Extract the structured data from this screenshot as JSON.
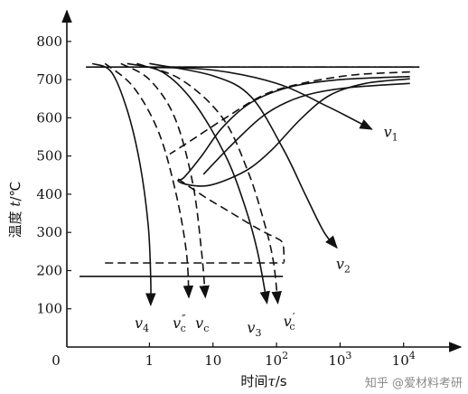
{
  "chart_data": {
    "type": "line",
    "title": "",
    "xlabel_parts": [
      "时间",
      "τ",
      "/s"
    ],
    "ylabel_parts": [
      "温度",
      "t",
      "/℃"
    ],
    "y_ticks": [
      {
        "value": 100,
        "label": "100"
      },
      {
        "value": 200,
        "label": "200"
      },
      {
        "value": 300,
        "label": "300"
      },
      {
        "value": 400,
        "label": "400"
      },
      {
        "value": 500,
        "label": "500"
      },
      {
        "value": 600,
        "label": "600"
      },
      {
        "value": 700,
        "label": "700"
      },
      {
        "value": 800,
        "label": "800"
      }
    ],
    "x_ticks": [
      {
        "exp": 0,
        "base": "1",
        "sup": ""
      },
      {
        "exp": 1,
        "base": "10",
        "sup": ""
      },
      {
        "exp": 2,
        "base": "10",
        "sup": "2"
      },
      {
        "exp": 3,
        "base": "10",
        "sup": "3"
      },
      {
        "exp": 4,
        "base": "10",
        "sup": "4"
      }
    ],
    "origin_label": "0",
    "xlim_log10": [
      -1.3,
      4.9
    ],
    "ylim": [
      0,
      880
    ],
    "reference_lines": [
      {
        "id": "ms-dashed",
        "style": "dashed",
        "y": 220,
        "x_from_log": -0.7,
        "x_to_log": 2.12
      },
      {
        "id": "ms-solid",
        "style": "solid",
        "y": 185,
        "x_from_log": -1.1,
        "x_to_log": 2.1
      },
      {
        "id": "a1-solid",
        "style": "solid",
        "y": 733,
        "x_from_log": -1.0,
        "x_to_log": 4.25
      },
      {
        "id": "a1-dashdot",
        "style": "dashdot",
        "y": 733,
        "x_from_log": 0.2,
        "x_to_log": 4.25
      }
    ],
    "c_curves": [
      {
        "id": "start-solid",
        "style": "solid",
        "points": [
          [
            4.1,
            708
          ],
          [
            3.0,
            700
          ],
          [
            2.2,
            680
          ],
          [
            1.6,
            640
          ],
          [
            1.15,
            575
          ],
          [
            0.82,
            500
          ],
          [
            0.55,
            445
          ],
          [
            0.45,
            435
          ],
          [
            0.6,
            425
          ],
          [
            0.9,
            422
          ],
          [
            1.25,
            440
          ],
          [
            1.6,
            470
          ],
          [
            1.95,
            520
          ],
          [
            2.4,
            600
          ],
          [
            2.85,
            660
          ],
          [
            3.4,
            690
          ],
          [
            4.1,
            702
          ]
        ]
      },
      {
        "id": "end-solid",
        "style": "solid",
        "points": [
          [
            4.1,
            690
          ],
          [
            3.2,
            680
          ],
          [
            2.6,
            665
          ],
          [
            2.15,
            640
          ],
          [
            1.75,
            600
          ],
          [
            1.3,
            530
          ],
          [
            0.98,
            475
          ],
          [
            0.85,
            452
          ]
        ]
      },
      {
        "id": "start-dashed",
        "style": "dashed",
        "points": [
          [
            4.1,
            720
          ],
          [
            3.2,
            712
          ],
          [
            2.4,
            690
          ],
          [
            1.8,
            660
          ],
          [
            1.2,
            600
          ],
          [
            0.65,
            540
          ],
          [
            0.32,
            505
          ]
        ]
      },
      {
        "id": "end-dashed",
        "style": "dashed",
        "points": [
          [
            0.45,
            440
          ],
          [
            0.85,
            395
          ],
          [
            1.25,
            355
          ],
          [
            1.6,
            320
          ],
          [
            1.85,
            297
          ],
          [
            2.0,
            285
          ],
          [
            2.1,
            270
          ],
          [
            2.12,
            222
          ]
        ]
      }
    ],
    "series": [
      {
        "name": "",
        "label_base": "v",
        "label_sub": "1",
        "style": "solid",
        "arrow": true,
        "label_x_log": 3.8,
        "label_y": 550,
        "points": [
          [
            0.05,
            732
          ],
          [
            1.0,
            725
          ],
          [
            2.0,
            690
          ],
          [
            2.8,
            630
          ],
          [
            3.5,
            570
          ]
        ]
      },
      {
        "name": "",
        "label_base": "v",
        "label_sub": "2",
        "style": "solid",
        "arrow": true,
        "label_x_log": 3.05,
        "label_y": 205,
        "points": [
          [
            0.0,
            742
          ],
          [
            1.0,
            710
          ],
          [
            1.6,
            655
          ],
          [
            2.1,
            520
          ],
          [
            2.45,
            400
          ],
          [
            2.75,
            300
          ],
          [
            2.95,
            260
          ]
        ]
      },
      {
        "name": "",
        "label_base": "v",
        "label_sub": "3",
        "style": "solid",
        "arrow": true,
        "label_x_log": 1.65,
        "label_y": 38,
        "points": [
          [
            -0.35,
            742
          ],
          [
            0.2,
            720
          ],
          [
            0.7,
            640
          ],
          [
            1.2,
            500
          ],
          [
            1.5,
            370
          ],
          [
            1.7,
            250
          ],
          [
            1.85,
            115
          ]
        ]
      },
      {
        "name": "",
        "label_base": "v",
        "label_sub": "4",
        "style": "solid",
        "arrow": true,
        "label_x_log": -0.12,
        "label_y": 50,
        "points": [
          [
            -0.9,
            742
          ],
          [
            -0.6,
            720
          ],
          [
            -0.35,
            620
          ],
          [
            -0.15,
            480
          ],
          [
            -0.02,
            320
          ],
          [
            0.02,
            180
          ],
          [
            0.02,
            110
          ]
        ]
      },
      {
        "name": "",
        "label_base": "v",
        "label_sub": "c",
        "label_prime": "",
        "style": "dashed",
        "arrow": true,
        "label_x_log": 0.83,
        "label_y": 50,
        "points": [
          [
            -0.45,
            742
          ],
          [
            0.0,
            700
          ],
          [
            0.4,
            600
          ],
          [
            0.68,
            430
          ],
          [
            0.82,
            250
          ],
          [
            0.88,
            130
          ]
        ]
      },
      {
        "name": "",
        "label_base": "v",
        "label_sub": "c",
        "label_prime": "″",
        "style": "dashed",
        "arrow": true,
        "label_x_log": 0.47,
        "label_y": 50,
        "points": [
          [
            -0.7,
            742
          ],
          [
            -0.25,
            680
          ],
          [
            0.15,
            560
          ],
          [
            0.42,
            400
          ],
          [
            0.58,
            250
          ],
          [
            0.62,
            130
          ]
        ]
      },
      {
        "name": "",
        "label_base": "v",
        "label_sub": "c",
        "label_prime": "′",
        "style": "dashed",
        "arrow": true,
        "label_x_log": 2.2,
        "label_y": 55,
        "points": [
          [
            -0.2,
            742
          ],
          [
            0.5,
            700
          ],
          [
            1.15,
            600
          ],
          [
            1.55,
            460
          ],
          [
            1.8,
            330
          ],
          [
            1.95,
            225
          ],
          [
            2.02,
            115
          ]
        ]
      }
    ]
  },
  "watermark": "知乎 @爱材料考研"
}
